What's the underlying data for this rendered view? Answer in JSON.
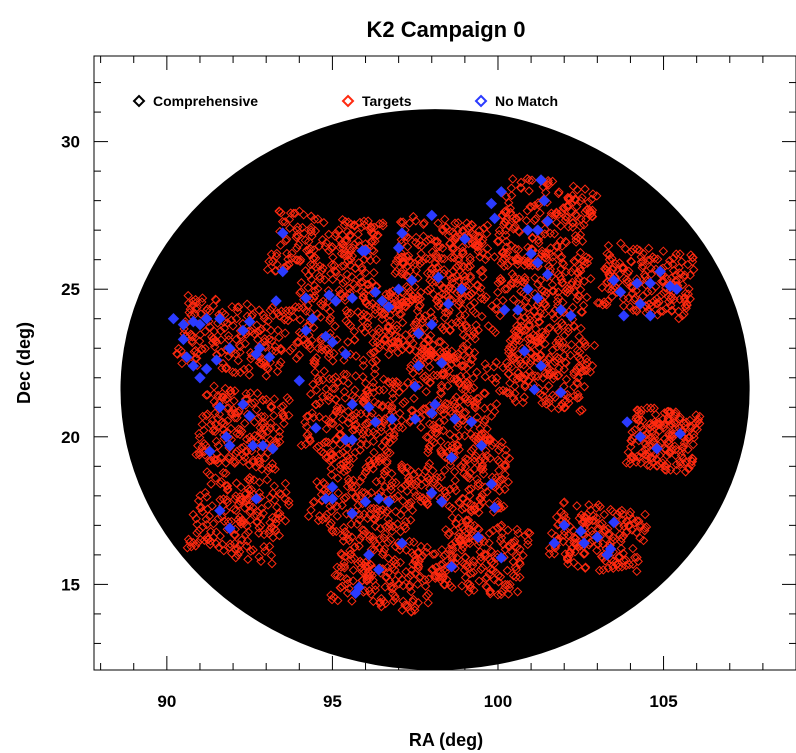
{
  "chart_data": {
    "type": "scatter",
    "title": "K2 Campaign 0",
    "xlabel": "RA (deg)",
    "ylabel": "Dec (deg)",
    "xlim": [
      87.8,
      109.0
    ],
    "ylim": [
      12.1,
      32.9
    ],
    "xticks": [
      90,
      95,
      100,
      105
    ],
    "yticks": [
      15,
      20,
      25,
      30
    ],
    "x_minor_step": 1,
    "y_minor_step": 1,
    "grid": false,
    "legend_position": "top-left",
    "field_of_view": {
      "center": [
        98.1,
        21.6
      ],
      "radius": 9.5,
      "color": "#000000"
    },
    "series": [
      {
        "name": "Comprehensive",
        "color": "#000000",
        "marker": "diamond-open"
      },
      {
        "name": "Targets",
        "color": "#ff2a10",
        "marker": "diamond-open"
      },
      {
        "name": "No Match",
        "color": "#2b3bff",
        "marker": "diamond-open"
      }
    ],
    "modules": [
      {
        "center": [
          94.8,
          26.45
        ],
        "half_width": 1.6,
        "half_height": 1.1
      },
      {
        "center": [
          98.3,
          26.3
        ],
        "half_width": 1.4,
        "half_height": 1.1
      },
      {
        "center": [
          101.5,
          27.2
        ],
        "half_width": 1.4,
        "half_height": 1.5
      },
      {
        "center": [
          92.0,
          23.4
        ],
        "half_width": 1.6,
        "half_height": 1.2
      },
      {
        "center": [
          95.4,
          23.8
        ],
        "half_width": 1.6,
        "half_height": 1.5
      },
      {
        "center": [
          98.1,
          23.9
        ],
        "half_width": 1.4,
        "half_height": 1.3
      },
      {
        "center": [
          101.3,
          24.8
        ],
        "half_width": 1.4,
        "half_height": 1.5
      },
      {
        "center": [
          104.5,
          25.3
        ],
        "half_width": 1.4,
        "half_height": 1.1
      },
      {
        "center": [
          92.3,
          20.3
        ],
        "half_width": 1.3,
        "half_height": 1.3
      },
      {
        "center": [
          95.6,
          20.7
        ],
        "half_width": 1.4,
        "half_height": 1.4
      },
      {
        "center": [
          98.6,
          21.4
        ],
        "half_width": 1.4,
        "half_height": 1.4
      },
      {
        "center": [
          101.5,
          22.2
        ],
        "half_width": 1.3,
        "half_height": 1.2
      },
      {
        "center": [
          105.0,
          19.9
        ],
        "half_width": 1.0,
        "half_height": 1.0
      },
      {
        "center": [
          92.2,
          17.3
        ],
        "half_width": 1.4,
        "half_height": 1.4
      },
      {
        "center": [
          95.9,
          17.9
        ],
        "half_width": 1.6,
        "half_height": 1.4
      },
      {
        "center": [
          99.0,
          18.8
        ],
        "half_width": 1.4,
        "half_height": 1.3
      },
      {
        "center": [
          103.0,
          16.6
        ],
        "half_width": 1.4,
        "half_height": 1.1
      },
      {
        "center": [
          96.6,
          15.4
        ],
        "half_width": 1.5,
        "half_height": 1.2
      },
      {
        "center": [
          99.5,
          15.9
        ],
        "half_width": 1.3,
        "half_height": 1.2
      }
    ],
    "target_points_per_module": 180,
    "no_match_points": [
      [
        93.5,
        26.9
      ],
      [
        93.5,
        25.6
      ],
      [
        95.9,
        26.3
      ],
      [
        96.0,
        26.3
      ],
      [
        97.1,
        26.9
      ],
      [
        97.0,
        26.4
      ],
      [
        98.0,
        27.5
      ],
      [
        99.0,
        26.7
      ],
      [
        99.8,
        27.9
      ],
      [
        100.1,
        28.3
      ],
      [
        100.9,
        27.0
      ],
      [
        101.2,
        27.0
      ],
      [
        101.3,
        28.7
      ],
      [
        101.4,
        28.0
      ],
      [
        101.5,
        27.3
      ],
      [
        99.9,
        27.4
      ],
      [
        90.2,
        24.0
      ],
      [
        90.5,
        23.8
      ],
      [
        90.8,
        23.9
      ],
      [
        91.0,
        23.8
      ],
      [
        91.2,
        24.0
      ],
      [
        90.5,
        23.3
      ],
      [
        90.6,
        22.7
      ],
      [
        90.8,
        22.4
      ],
      [
        91.0,
        22.0
      ],
      [
        91.2,
        22.3
      ],
      [
        91.5,
        22.6
      ],
      [
        91.6,
        24.0
      ],
      [
        92.3,
        23.6
      ],
      [
        92.5,
        23.9
      ],
      [
        92.8,
        23.0
      ],
      [
        92.7,
        22.8
      ],
      [
        91.9,
        23.0
      ],
      [
        93.1,
        22.7
      ],
      [
        93.3,
        24.6
      ],
      [
        94.2,
        24.7
      ],
      [
        94.9,
        24.8
      ],
      [
        95.1,
        24.6
      ],
      [
        95.6,
        24.7
      ],
      [
        94.4,
        24.0
      ],
      [
        94.8,
        23.4
      ],
      [
        95.0,
        23.2
      ],
      [
        94.2,
        23.6
      ],
      [
        95.4,
        22.8
      ],
      [
        96.5,
        24.6
      ],
      [
        96.7,
        24.4
      ],
      [
        97.0,
        25.0
      ],
      [
        97.4,
        25.3
      ],
      [
        98.2,
        25.4
      ],
      [
        98.5,
        24.5
      ],
      [
        98.0,
        23.8
      ],
      [
        97.6,
        23.5
      ],
      [
        96.3,
        24.9
      ],
      [
        98.9,
        25.0
      ],
      [
        100.2,
        24.3
      ],
      [
        100.6,
        24.3
      ],
      [
        101.0,
        26.2
      ],
      [
        101.2,
        25.9
      ],
      [
        101.5,
        25.5
      ],
      [
        101.2,
        24.7
      ],
      [
        101.9,
        24.3
      ],
      [
        102.2,
        24.1
      ],
      [
        100.9,
        25.0
      ],
      [
        103.7,
        24.9
      ],
      [
        104.2,
        25.2
      ],
      [
        104.6,
        25.2
      ],
      [
        104.9,
        25.6
      ],
      [
        105.2,
        25.1
      ],
      [
        103.8,
        24.1
      ],
      [
        104.3,
        24.5
      ],
      [
        104.6,
        24.1
      ],
      [
        105.4,
        25.0
      ],
      [
        103.5,
        25.3
      ],
      [
        91.6,
        21.0
      ],
      [
        92.3,
        21.1
      ],
      [
        92.5,
        20.7
      ],
      [
        91.8,
        20.0
      ],
      [
        91.9,
        19.7
      ],
      [
        92.6,
        19.7
      ],
      [
        91.3,
        19.5
      ],
      [
        93.2,
        19.6
      ],
      [
        92.9,
        19.7
      ],
      [
        94.0,
        21.9
      ],
      [
        95.6,
        21.1
      ],
      [
        96.1,
        21.0
      ],
      [
        95.6,
        19.9
      ],
      [
        95.4,
        19.9
      ],
      [
        96.3,
        20.5
      ],
      [
        96.8,
        20.6
      ],
      [
        94.5,
        20.3
      ],
      [
        97.6,
        22.4
      ],
      [
        97.5,
        21.7
      ],
      [
        98.3,
        22.5
      ],
      [
        97.5,
        20.6
      ],
      [
        98.0,
        20.8
      ],
      [
        98.7,
        20.6
      ],
      [
        99.2,
        20.5
      ],
      [
        98.1,
        21.1
      ],
      [
        100.8,
        22.9
      ],
      [
        101.1,
        21.6
      ],
      [
        101.9,
        21.5
      ],
      [
        101.3,
        22.4
      ],
      [
        103.9,
        20.5
      ],
      [
        104.8,
        19.6
      ],
      [
        105.5,
        20.1
      ],
      [
        104.3,
        20.0
      ],
      [
        92.7,
        17.9
      ],
      [
        91.6,
        17.5
      ],
      [
        91.9,
        16.9
      ],
      [
        94.8,
        17.9
      ],
      [
        95.0,
        17.9
      ],
      [
        96.0,
        17.8
      ],
      [
        96.4,
        17.9
      ],
      [
        96.7,
        17.8
      ],
      [
        95.0,
        18.3
      ],
      [
        95.6,
        17.4
      ],
      [
        98.0,
        18.1
      ],
      [
        98.3,
        17.8
      ],
      [
        99.5,
        19.7
      ],
      [
        99.8,
        18.4
      ],
      [
        98.6,
        19.3
      ],
      [
        99.9,
        17.6
      ],
      [
        101.7,
        16.4
      ],
      [
        102.5,
        16.8
      ],
      [
        102.6,
        16.4
      ],
      [
        103.0,
        16.6
      ],
      [
        103.3,
        16.0
      ],
      [
        103.4,
        16.2
      ],
      [
        102.0,
        17.0
      ],
      [
        103.5,
        17.1
      ],
      [
        95.8,
        14.9
      ],
      [
        96.1,
        16.0
      ],
      [
        96.4,
        15.5
      ],
      [
        97.1,
        16.4
      ],
      [
        95.7,
        14.7
      ],
      [
        98.6,
        15.6
      ],
      [
        100.1,
        15.9
      ],
      [
        99.4,
        16.6
      ]
    ]
  }
}
